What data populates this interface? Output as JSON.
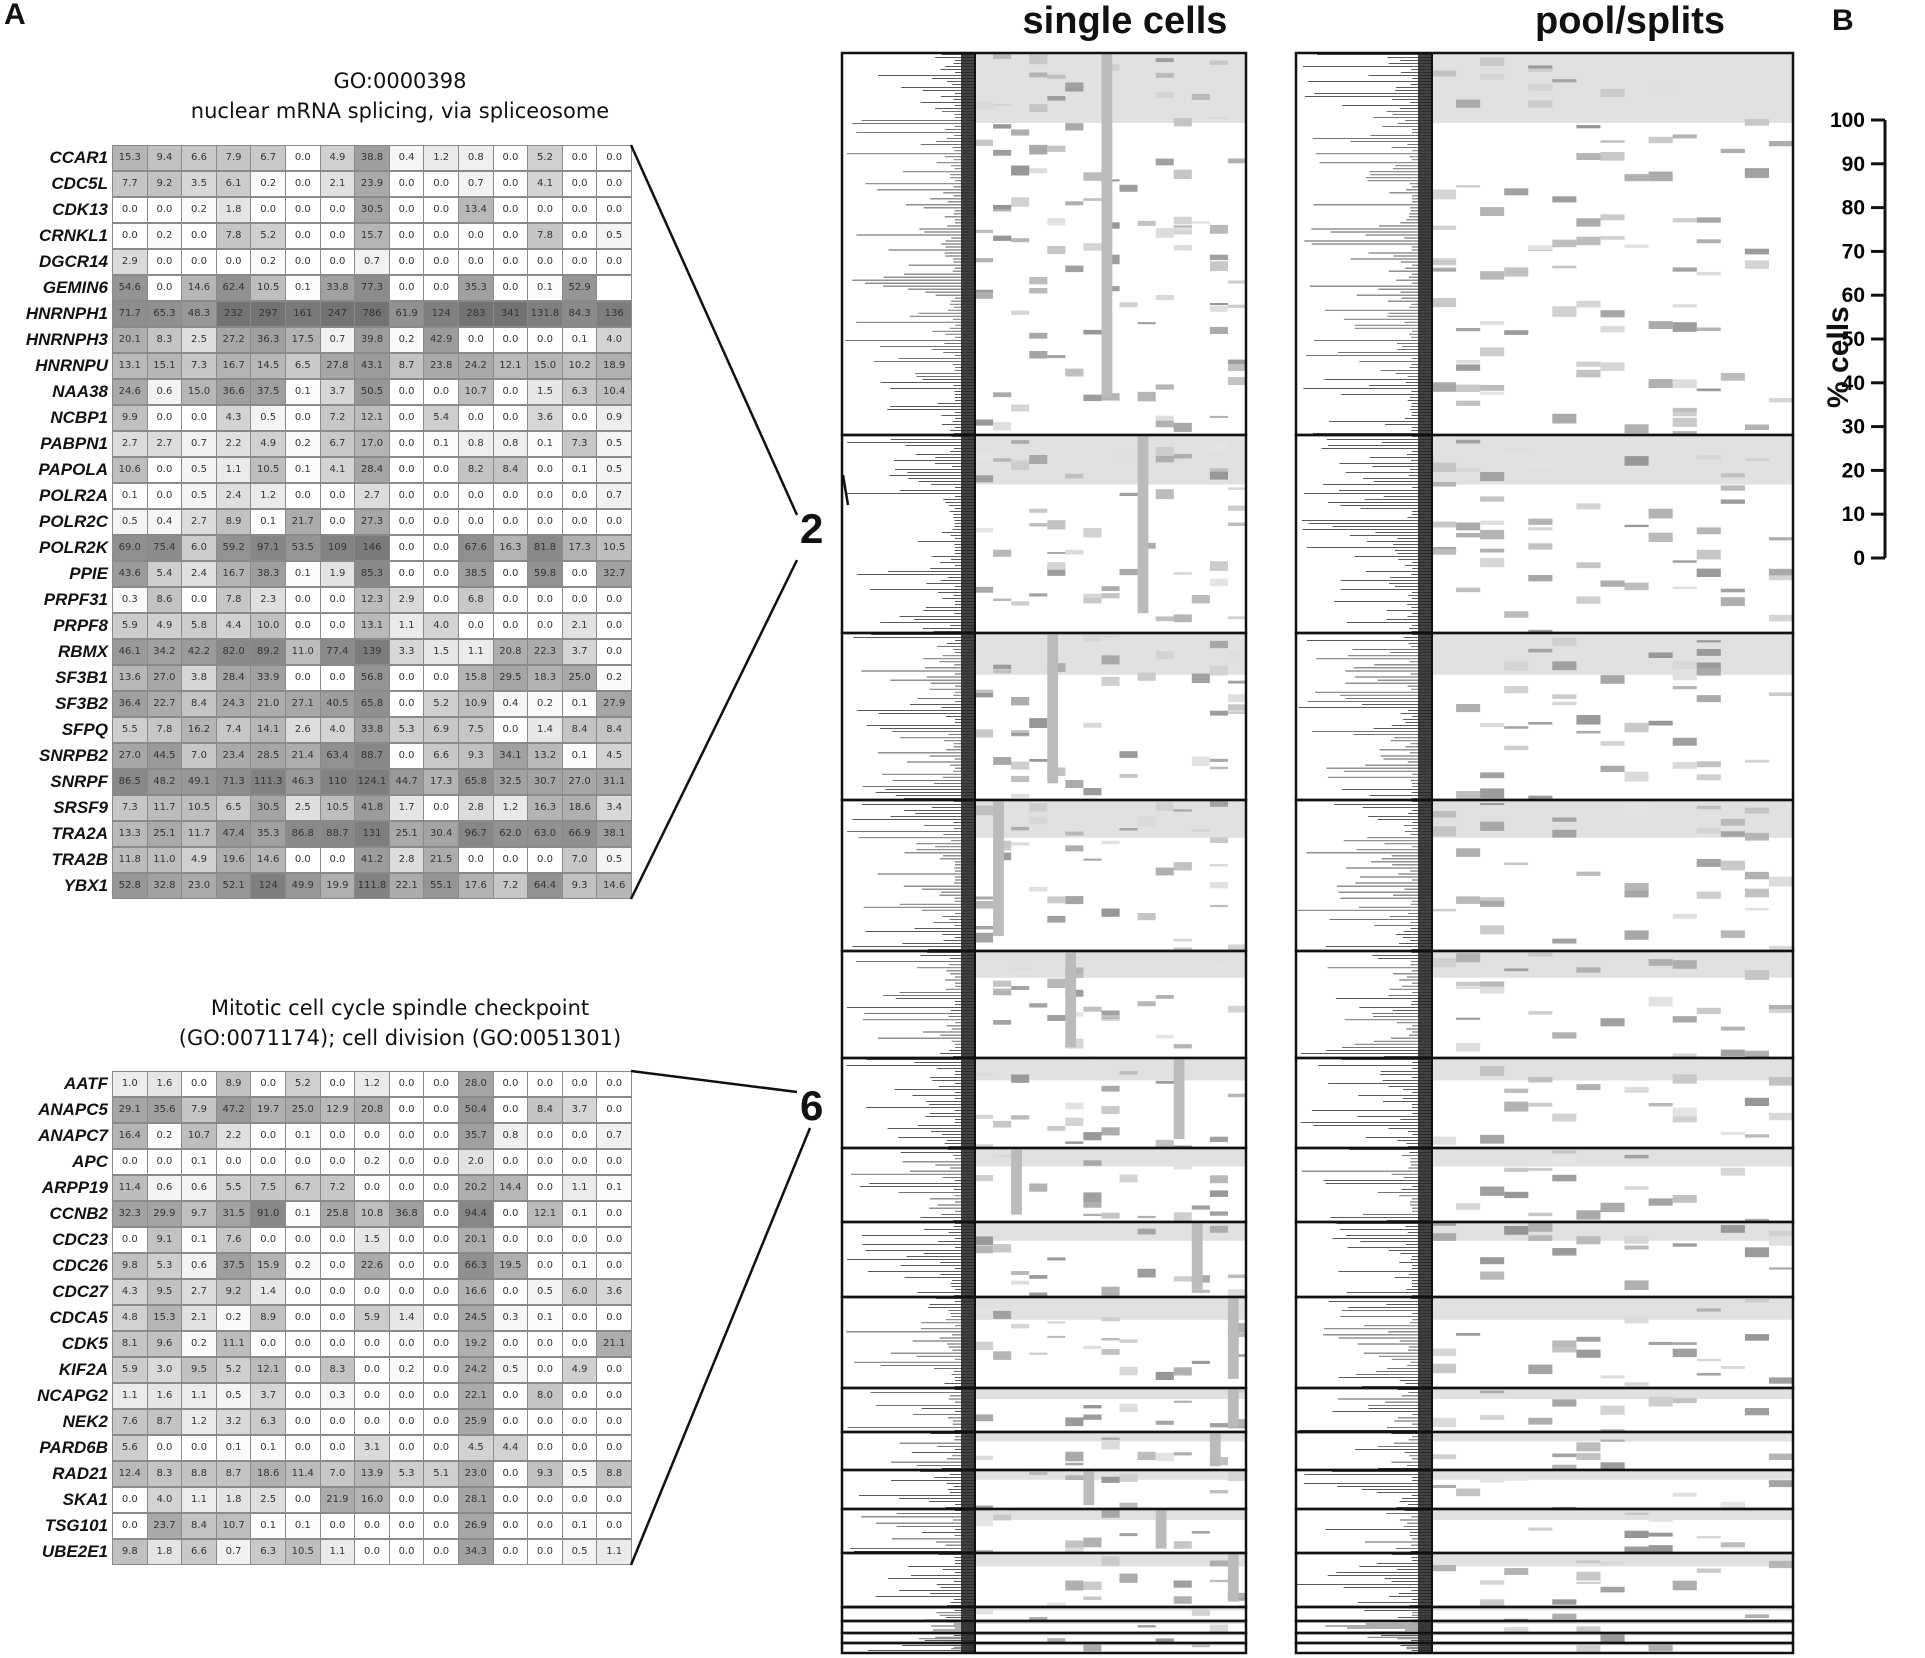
{
  "panel_labels": {
    "a": "A",
    "b": "B"
  },
  "heatmap_titles": {
    "single": "single cells",
    "pool": "pool/splits"
  },
  "scale": {
    "ylabel": "% cells",
    "ticks": [
      100,
      90,
      80,
      70,
      60,
      50,
      40,
      30,
      20,
      10,
      0
    ]
  },
  "colors": {
    "low": "#ffffff",
    "high": "#7a7a7a",
    "border": "#111111"
  },
  "chart_data": [
    {
      "type": "table",
      "title_line1": "GO:0000398",
      "title_line2": "nuclear mRNA splicing,  via spliceosome",
      "cluster": "2",
      "genes": [
        "CCAR1",
        "CDC5L",
        "CDK13",
        "CRNKL1",
        "DGCR14",
        "GEMIN6",
        "HNRNPH1",
        "HNRNPH3",
        "HNRNPU",
        "NAA38",
        "NCBP1",
        "PABPN1",
        "PAPOLA",
        "POLR2A",
        "POLR2C",
        "POLR2K",
        "PPIE",
        "PRPF31",
        "PRPF8",
        "RBMX",
        "SF3B1",
        "SF3B2",
        "SFPQ",
        "SNRPB2",
        "SNRPF",
        "SRSF9",
        "TRA2A",
        "TRA2B",
        "YBX1"
      ],
      "values": [
        [
          "15.3",
          "9.4",
          "6.6",
          "7.9",
          "6.7",
          "0.0",
          "4.9",
          "38.8",
          "0.4",
          "1.2",
          "0.8",
          "0.0",
          "5.2",
          "0.0",
          "0.0"
        ],
        [
          "7.7",
          "9.2",
          "3.5",
          "6.1",
          "0.2",
          "0.0",
          "2.1",
          "23.9",
          "0.0",
          "0.0",
          "0.7",
          "0.0",
          "4.1",
          "0.0",
          "0.0"
        ],
        [
          "0.0",
          "0.0",
          "0.2",
          "1.8",
          "0.0",
          "0.0",
          "0.0",
          "30.5",
          "0.0",
          "0.0",
          "13.4",
          "0.0",
          "0.0",
          "0.0",
          "0.0"
        ],
        [
          "0.0",
          "0.2",
          "0.0",
          "7.8",
          "5.2",
          "0.0",
          "0.0",
          "15.7",
          "0.0",
          "0.0",
          "0.0",
          "0.0",
          "7.8",
          "0.0",
          "0.5"
        ],
        [
          "2.9",
          "0.0",
          "0.0",
          "0.0",
          "0.2",
          "0.0",
          "0.0",
          "0.7",
          "0.0",
          "0.0",
          "0.0",
          "0.0",
          "0.0",
          "0.0",
          "0.0"
        ],
        [
          "54.6",
          "0.0",
          "14.6",
          "62.4",
          "10.5",
          "0.1",
          "33.8",
          "77.3",
          "0.0",
          "0.0",
          "35.3",
          "0.0",
          "0.1",
          "52.9",
          ""
        ],
        [
          "71.7",
          "65.3",
          "48.3",
          "232",
          "297",
          "161",
          "247",
          "786",
          "61.9",
          "124",
          "283",
          "341",
          "131.8",
          "84.3",
          "136"
        ],
        [
          "20.1",
          "8.3",
          "2.5",
          "27.2",
          "36.3",
          "17.5",
          "0.7",
          "39.8",
          "0.2",
          "42.9",
          "0.0",
          "0.0",
          "0.0",
          "0.1",
          "4.0"
        ],
        [
          "13.1",
          "15.1",
          "7.3",
          "16.7",
          "14.5",
          "6.5",
          "27.8",
          "43.1",
          "8.7",
          "23.8",
          "24.2",
          "12.1",
          "15.0",
          "10.2",
          "18.9"
        ],
        [
          "24.6",
          "0.6",
          "15.0",
          "36.6",
          "37.5",
          "0.1",
          "3.7",
          "50.5",
          "0.0",
          "0.0",
          "10.7",
          "0.0",
          "1.5",
          "6.3",
          "10.4"
        ],
        [
          "9.9",
          "0.0",
          "0.0",
          "4.3",
          "0.5",
          "0.0",
          "7.2",
          "12.1",
          "0.0",
          "5.4",
          "0.0",
          "0.0",
          "3.6",
          "0.0",
          "0.9"
        ],
        [
          "2.7",
          "2.7",
          "0.7",
          "2.2",
          "4.9",
          "0.2",
          "6.7",
          "17.0",
          "0.0",
          "0.1",
          "0.8",
          "0.8",
          "0.1",
          "7.3",
          "0.5"
        ],
        [
          "10.6",
          "0.0",
          "0.5",
          "1.1",
          "10.5",
          "0.1",
          "4.1",
          "28.4",
          "0.0",
          "0.0",
          "8.2",
          "8.4",
          "0.0",
          "0.1",
          "0.5"
        ],
        [
          "0.1",
          "0.0",
          "0.5",
          "2.4",
          "1.2",
          "0.0",
          "0.0",
          "2.7",
          "0.0",
          "0.0",
          "0.0",
          "0.0",
          "0.0",
          "0.0",
          "0.7"
        ],
        [
          "0.5",
          "0.4",
          "2.7",
          "8.9",
          "0.1",
          "21.7",
          "0.0",
          "27.3",
          "0.0",
          "0.0",
          "0.0",
          "0.0",
          "0.0",
          "0.0",
          "0.0"
        ],
        [
          "69.0",
          "75.4",
          "6.0",
          "59.2",
          "97.1",
          "53.5",
          "109",
          "146",
          "0.0",
          "0.0",
          "67.6",
          "16.3",
          "81.8",
          "17.3",
          "10.5"
        ],
        [
          "43.6",
          "5.4",
          "2.4",
          "16.7",
          "38.3",
          "0.1",
          "1.9",
          "85.3",
          "0.0",
          "0.0",
          "38.5",
          "0.0",
          "59.8",
          "0.0",
          "32.7"
        ],
        [
          "0.3",
          "8.6",
          "0.0",
          "7.8",
          "2.3",
          "0.0",
          "0.0",
          "12.3",
          "2.9",
          "0.0",
          "6.8",
          "0.0",
          "0.0",
          "0.0",
          "0.0"
        ],
        [
          "5.9",
          "4.9",
          "5.8",
          "4.4",
          "10.0",
          "0.0",
          "0.0",
          "13.1",
          "1.1",
          "4.0",
          "0.0",
          "0.0",
          "0.0",
          "2.1",
          "0.0"
        ],
        [
          "46.1",
          "34.2",
          "42.2",
          "82.0",
          "89.2",
          "11.0",
          "77.4",
          "139",
          "3.3",
          "1.5",
          "1.1",
          "20.8",
          "22.3",
          "3.7",
          "0.0"
        ],
        [
          "13.6",
          "27.0",
          "3.8",
          "28.4",
          "33.9",
          "0.0",
          "0.0",
          "56.8",
          "0.0",
          "0.0",
          "15.8",
          "29.5",
          "18.3",
          "25.0",
          "0.2"
        ],
        [
          "36.4",
          "22.7",
          "8.4",
          "24.3",
          "21.0",
          "27.1",
          "40.5",
          "65.8",
          "0.0",
          "5.2",
          "10.9",
          "0.4",
          "0.2",
          "0.1",
          "27.9"
        ],
        [
          "5.5",
          "7.8",
          "16.2",
          "7.4",
          "14.1",
          "2.6",
          "4.0",
          "33.8",
          "5.3",
          "6.9",
          "7.5",
          "0.0",
          "1.4",
          "8.4",
          "8.4"
        ],
        [
          "27.0",
          "44.5",
          "7.0",
          "23.4",
          "28.5",
          "21.4",
          "63.4",
          "88.7",
          "0.0",
          "6.6",
          "9.3",
          "34.1",
          "13.2",
          "0.1",
          "4.5"
        ],
        [
          "86.5",
          "48.2",
          "49.1",
          "71.3",
          "111.3",
          "46.3",
          "110",
          "124.1",
          "44.7",
          "17.3",
          "65.8",
          "32.5",
          "30.7",
          "27.0",
          "31.1"
        ],
        [
          "7.3",
          "11.7",
          "10.5",
          "6.5",
          "30.5",
          "2.5",
          "10.5",
          "41.8",
          "1.7",
          "0.0",
          "2.8",
          "1.2",
          "16.3",
          "18.6",
          "3.4"
        ],
        [
          "13.3",
          "25.1",
          "11.7",
          "47.4",
          "35.3",
          "86.8",
          "88.7",
          "131",
          "25.1",
          "30.4",
          "96.7",
          "62.0",
          "63.0",
          "66.9",
          "38.1"
        ],
        [
          "11.8",
          "11.0",
          "4.9",
          "19.6",
          "14.6",
          "0.0",
          "0.0",
          "41.2",
          "2.8",
          "21.5",
          "0.0",
          "0.0",
          "0.0",
          "7.0",
          "0.5"
        ],
        [
          "52.8",
          "32.8",
          "23.0",
          "52.1",
          "124",
          "49.9",
          "19.9",
          "111.8",
          "22.1",
          "55.1",
          "17.6",
          "7.2",
          "64.4",
          "9.3",
          "14.6"
        ]
      ]
    },
    {
      "type": "table",
      "title_line1": "Mitotic cell cycle  spindle checkpoint",
      "title_line2": "(GO:0071174);  cell division  (GO:0051301)",
      "cluster": "6",
      "genes": [
        "AATF",
        "ANAPC5",
        "ANAPC7",
        "APC",
        "ARPP19",
        "CCNB2",
        "CDC23",
        "CDC26",
        "CDC27",
        "CDCA5",
        "CDK5",
        "KIF2A",
        "NCAPG2",
        "NEK2",
        "PARD6B",
        "RAD21",
        "SKA1",
        "TSG101",
        "UBE2E1"
      ],
      "values": [
        [
          "1.0",
          "1.6",
          "0.0",
          "8.9",
          "0.0",
          "5.2",
          "0.0",
          "1.2",
          "0.0",
          "0.0",
          "28.0",
          "0.0",
          "0.0",
          "0.0",
          "0.0"
        ],
        [
          "29.1",
          "35.6",
          "7.9",
          "47.2",
          "19.7",
          "25.0",
          "12.9",
          "20.8",
          "0.0",
          "0.0",
          "50.4",
          "0.0",
          "8.4",
          "3.7",
          "0.0"
        ],
        [
          "16.4",
          "0.2",
          "10.7",
          "2.2",
          "0.0",
          "0.1",
          "0.0",
          "0.0",
          "0.0",
          "0.0",
          "35.7",
          "0.8",
          "0.0",
          "0.0",
          "0.7"
        ],
        [
          "0.0",
          "0.0",
          "0.1",
          "0.0",
          "0.0",
          "0.0",
          "0.0",
          "0.2",
          "0.0",
          "0.0",
          "2.0",
          "0.0",
          "0.0",
          "0.0",
          "0.0"
        ],
        [
          "11.4",
          "0.6",
          "0.6",
          "5.5",
          "7.5",
          "6.7",
          "7.2",
          "0.0",
          "0.0",
          "0.0",
          "20.2",
          "14.4",
          "0.0",
          "1.1",
          "0.1"
        ],
        [
          "32.3",
          "29.9",
          "9.7",
          "31.5",
          "91.0",
          "0.1",
          "25.8",
          "10.8",
          "36.8",
          "0.0",
          "94.4",
          "0.0",
          "12.1",
          "0.1",
          "0.0"
        ],
        [
          "0.0",
          "9.1",
          "0.1",
          "7.6",
          "0.0",
          "0.0",
          "0.0",
          "1.5",
          "0.0",
          "0.0",
          "20.1",
          "0.0",
          "0.0",
          "0.0",
          "0.0"
        ],
        [
          "9.8",
          "5.3",
          "0.6",
          "37.5",
          "15.9",
          "0.2",
          "0.0",
          "22.6",
          "0.0",
          "0.0",
          "66.3",
          "19.5",
          "0.0",
          "0.1",
          "0.0"
        ],
        [
          "4.3",
          "9.5",
          "2.7",
          "9.2",
          "1.4",
          "0.0",
          "0.0",
          "0.0",
          "0.0",
          "0.0",
          "16.6",
          "0.0",
          "0.5",
          "6.0",
          "3.6"
        ],
        [
          "4.8",
          "15.3",
          "2.1",
          "0.2",
          "8.9",
          "0.0",
          "0.0",
          "5.9",
          "1.4",
          "0.0",
          "24.5",
          "0.3",
          "0.1",
          "0.0",
          "0.0"
        ],
        [
          "8.1",
          "9.6",
          "0.2",
          "11.1",
          "0.0",
          "0.0",
          "0.0",
          "0.0",
          "0.0",
          "0.0",
          "19.2",
          "0.0",
          "0.0",
          "0.0",
          "21.1"
        ],
        [
          "5.9",
          "3.0",
          "9.5",
          "5.2",
          "12.1",
          "0.0",
          "8.3",
          "0.0",
          "0.2",
          "0.0",
          "24.2",
          "0.5",
          "0.0",
          "4.9",
          "0.0"
        ],
        [
          "1.1",
          "1.6",
          "1.1",
          "0.5",
          "3.7",
          "0.0",
          "0.3",
          "0.0",
          "0.0",
          "0.0",
          "22.1",
          "0.0",
          "8.0",
          "0.0",
          "0.0"
        ],
        [
          "7.6",
          "8.7",
          "1.2",
          "3.2",
          "6.3",
          "0.0",
          "0.0",
          "0.0",
          "0.0",
          "0.0",
          "25.9",
          "0.0",
          "0.0",
          "0.0",
          "0.0"
        ],
        [
          "5.6",
          "0.0",
          "0.0",
          "0.1",
          "0.1",
          "0.0",
          "0.0",
          "3.1",
          "0.0",
          "0.0",
          "4.5",
          "4.4",
          "0.0",
          "0.0",
          "0.0"
        ],
        [
          "12.4",
          "8.3",
          "8.8",
          "8.7",
          "18.6",
          "11.4",
          "7.0",
          "13.9",
          "5.3",
          "5.1",
          "23.0",
          "0.0",
          "9.3",
          "0.5",
          "8.8"
        ],
        [
          "0.0",
          "4.0",
          "1.1",
          "1.8",
          "2.5",
          "0.0",
          "21.9",
          "16.0",
          "0.0",
          "0.0",
          "28.1",
          "0.0",
          "0.0",
          "0.0",
          "0.0"
        ],
        [
          "0.0",
          "23.7",
          "8.4",
          "10.7",
          "0.1",
          "0.1",
          "0.0",
          "0.0",
          "0.0",
          "0.0",
          "26.9",
          "0.0",
          "0.0",
          "0.1",
          "0.0"
        ],
        [
          "9.8",
          "1.8",
          "6.6",
          "0.7",
          "6.3",
          "10.5",
          "1.1",
          "0.0",
          "0.0",
          "0.0",
          "34.3",
          "0.0",
          "0.0",
          "0.5",
          "1.1"
        ]
      ]
    },
    {
      "type": "heatmap",
      "title": "single cells",
      "columns": 15,
      "clusters": 18
    },
    {
      "type": "heatmap",
      "title": "pool/splits",
      "columns": 15,
      "clusters": 18
    }
  ]
}
